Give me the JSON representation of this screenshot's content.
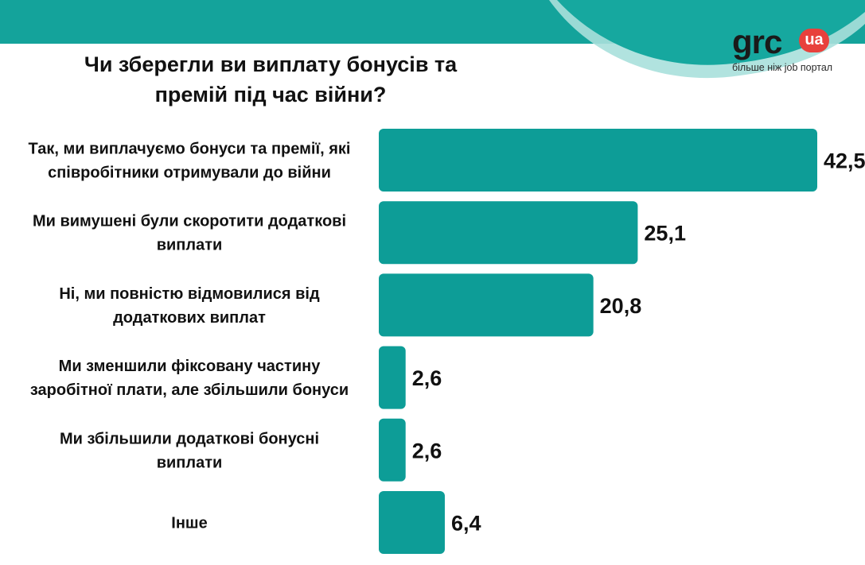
{
  "title_lines": [
    "Чи зберегли ви виплату бонусів та",
    "премій під час війни?"
  ],
  "logo": {
    "word": "grc",
    "badge": "ua",
    "tagline": "більше ніж job портал"
  },
  "colors": {
    "bar": "#0d9d97",
    "header_band": "#14a39b",
    "curve": "#a8e0dc",
    "text": "#111111"
  },
  "chart_data": {
    "type": "bar",
    "orientation": "horizontal",
    "title": "Чи зберегли ви виплату бонусів та премій під час війни?",
    "categories": [
      [
        "Так, ми виплачуємо бонуси та премії, які",
        "співробітники отримували до війни"
      ],
      [
        "Ми вимушені були скоротити додаткові",
        "виплати"
      ],
      [
        "Ні, ми повністю відмовилися від",
        "додаткових виплат"
      ],
      [
        "Ми зменшили фіксовану частину",
        "заробітної плати, але збільшили бонуси"
      ],
      [
        "Ми збільшили додаткові бонусні",
        "виплати"
      ],
      [
        "Інше"
      ]
    ],
    "values": [
      42.5,
      25.1,
      20.8,
      2.6,
      2.6,
      6.4
    ],
    "value_labels": [
      "42,5",
      "25,1",
      "20,8",
      "2,6",
      "2,6",
      "6,4"
    ],
    "xlim": [
      0,
      42.5
    ],
    "grid": false,
    "legend": "none"
  }
}
